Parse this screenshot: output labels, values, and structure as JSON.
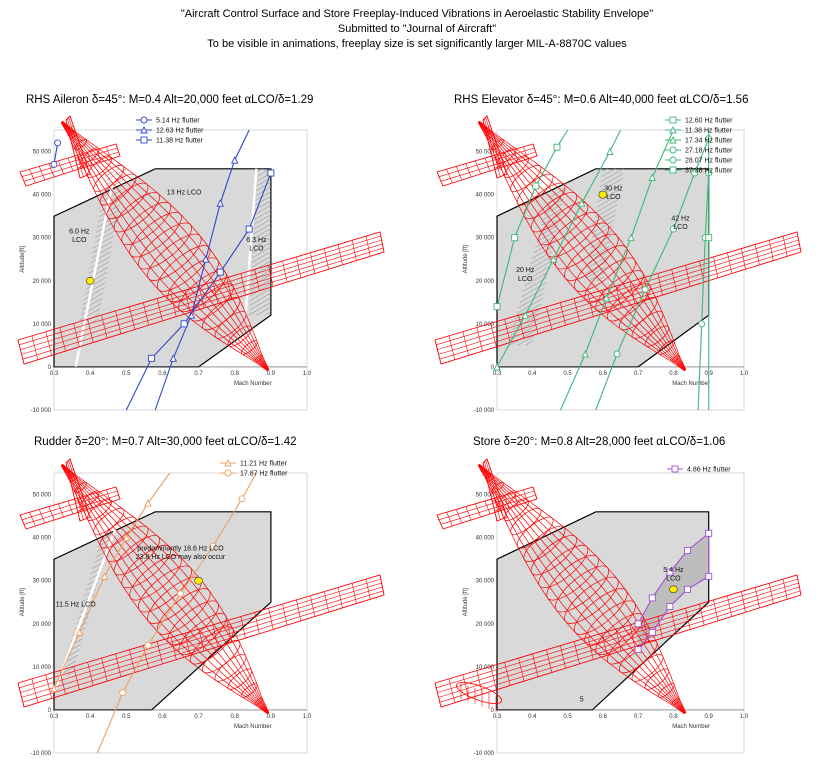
{
  "header": {
    "line1": "\"Aircraft Control Surface and Store Freeplay-Induced Vibrations in Aeroelastic Stability Envelope\"",
    "line2": "Submitted to \"Journal of Aircraft\"",
    "line3": "To be visible in animations, freeplay size is set significantly larger MIL-A-8870C values"
  },
  "colors": {
    "envelope_fill": "#d9d9d9",
    "envelope_edge": "#000000",
    "aircraft": "#ff0000",
    "flight_point": "#ffee00",
    "hatch": "#9a9a9a"
  },
  "chart_data": [
    {
      "type": "line",
      "title": "RHS Aileron δ=45°: M=0.4 Alt=20,000 feet  αLCO/δ=1.29",
      "xlabel": "Mach Number",
      "ylabel": "Altitude[ft]",
      "xlim": [
        0.3,
        1.0
      ],
      "ylim": [
        -10000,
        55000
      ],
      "xticks": [
        "0.3",
        "0.4",
        "0.5",
        "0.6",
        "0.7",
        "0.8",
        "0.9",
        "1.0"
      ],
      "yticks": [
        "-10 000",
        "",
        "10 000",
        "20 000",
        "30 000",
        "40 000",
        "50 000"
      ],
      "flight_point": {
        "mach": 0.4,
        "alt": 20000
      },
      "envelope": [
        [
          0.3,
          0
        ],
        [
          0.3,
          35000
        ],
        [
          0.58,
          46000
        ],
        [
          0.9,
          46000
        ],
        [
          0.9,
          12000
        ],
        [
          0.7,
          0
        ]
      ],
      "annotations": [
        {
          "text": "13 Hz LCO",
          "x": 0.66,
          "y": 40000
        },
        {
          "text": "6.0 Hz",
          "x": 0.37,
          "y": 31000
        },
        {
          "text": "LCO",
          "x": 0.37,
          "y": 29000
        },
        {
          "text": "6.3 Hz",
          "x": 0.86,
          "y": 29000
        },
        {
          "text": "LCO",
          "x": 0.86,
          "y": 27000
        }
      ],
      "series": [
        {
          "name": "5.14 Hz flutter",
          "color": "#2f48c8",
          "marker": "circle",
          "points": [
            [
              0.3,
              47000
            ],
            [
              0.31,
              52000
            ]
          ]
        },
        {
          "name": "12.63 Hz flutter",
          "color": "#2f48c8",
          "marker": "triangle",
          "points": [
            [
              0.58,
              -10000
            ],
            [
              0.63,
              2000
            ],
            [
              0.68,
              12000
            ],
            [
              0.72,
              25000
            ],
            [
              0.76,
              38000
            ],
            [
              0.8,
              48000
            ],
            [
              0.84,
              55000
            ]
          ]
        },
        {
          "name": "11.38 Hz flutter",
          "color": "#2f48c8",
          "marker": "square",
          "points": [
            [
              0.5,
              -10000
            ],
            [
              0.57,
              2000
            ],
            [
              0.66,
              10000
            ],
            [
              0.76,
              22000
            ],
            [
              0.84,
              32000
            ],
            [
              0.9,
              45000
            ]
          ]
        }
      ]
    },
    {
      "type": "line",
      "title": "RHS Elevator δ=45°: M=0.6 Alt=40,000 feet  αLCO/δ=1.56",
      "xlabel": "Mach Number",
      "ylabel": "Altitude [ft]",
      "xlim": [
        0.3,
        1.0
      ],
      "ylim": [
        -10000,
        55000
      ],
      "xticks": [
        "0.3",
        "0.4",
        "0.5",
        "0.6",
        "0.7",
        "0.8",
        "0.9",
        "1.0"
      ],
      "yticks": [
        "-10 000",
        "",
        "10 000",
        "20 000",
        "30 000",
        "40 000",
        "50 000"
      ],
      "flight_point": {
        "mach": 0.6,
        "alt": 40000
      },
      "envelope": [
        [
          0.3,
          0
        ],
        [
          0.3,
          35000
        ],
        [
          0.58,
          46000
        ],
        [
          0.9,
          46000
        ],
        [
          0.9,
          12000
        ],
        [
          0.7,
          0
        ]
      ],
      "annotations": [
        {
          "text": "30 Hz",
          "x": 0.63,
          "y": 41000
        },
        {
          "text": "LCO",
          "x": 0.63,
          "y": 39000
        },
        {
          "text": "42 Hz",
          "x": 0.82,
          "y": 34000
        },
        {
          "text": "LCO",
          "x": 0.82,
          "y": 32000
        },
        {
          "text": "20 Hz",
          "x": 0.38,
          "y": 22000
        },
        {
          "text": "LCO",
          "x": 0.38,
          "y": 20000
        }
      ],
      "series": [
        {
          "name": "12.60 Hz flutter",
          "color": "#3fb77a",
          "marker": "square",
          "points": [
            [
              0.3,
              14000
            ],
            [
              0.35,
              30000
            ],
            [
              0.41,
              42000
            ],
            [
              0.47,
              51000
            ],
            [
              0.5,
              55000
            ]
          ]
        },
        {
          "name": "11.38 Hz flutter",
          "color": "#3fb77a",
          "marker": "triangle",
          "points": [
            [
              0.3,
              0
            ],
            [
              0.38,
              12000
            ],
            [
              0.46,
              25000
            ],
            [
              0.54,
              38000
            ],
            [
              0.62,
              50000
            ],
            [
              0.65,
              55000
            ]
          ]
        },
        {
          "name": "17.34 Hz flutter",
          "color": "#3fb77a",
          "marker": "triangle",
          "points": [
            [
              0.48,
              -10000
            ],
            [
              0.55,
              3000
            ],
            [
              0.61,
              16000
            ],
            [
              0.68,
              30000
            ],
            [
              0.74,
              44000
            ],
            [
              0.8,
              55000
            ]
          ]
        },
        {
          "name": "27.18 Hz flutter",
          "color": "#3fb77a",
          "marker": "circle",
          "points": [
            [
              0.58,
              -10000
            ],
            [
              0.64,
              3000
            ],
            [
              0.72,
              18000
            ],
            [
              0.8,
              32000
            ],
            [
              0.86,
              45000
            ],
            [
              0.9,
              53000
            ]
          ]
        },
        {
          "name": "28.07 Hz flutter",
          "color": "#3fb77a",
          "marker": "circle",
          "points": [
            [
              0.87,
              -10000
            ],
            [
              0.88,
              10000
            ],
            [
              0.89,
              30000
            ],
            [
              0.9,
              45000
            ]
          ]
        },
        {
          "name": "37.38 Hz flutter",
          "color": "#3fb77a",
          "marker": "square",
          "points": [
            [
              0.9,
              -10000
            ],
            [
              0.9,
              30000
            ],
            [
              0.9,
              55000
            ]
          ]
        }
      ]
    },
    {
      "type": "line",
      "title": "Rudder δ=20°: M=0.7 Alt=30,000 feet  αLCO/δ=1.42",
      "xlabel": "Mach Number",
      "ylabel": "Altitude [ft]",
      "xlim": [
        0.3,
        1.0
      ],
      "ylim": [
        -10000,
        55000
      ],
      "xticks": [
        "0.3",
        "0.4",
        "0.5",
        "0.6",
        "0.7",
        "0.8",
        "0.9",
        "1.0"
      ],
      "yticks": [
        "-10 000",
        "",
        "10 000",
        "20 000",
        "30 000",
        "40 000",
        "50 000"
      ],
      "flight_point": {
        "mach": 0.7,
        "alt": 30000
      },
      "envelope": [
        [
          0.3,
          0
        ],
        [
          0.3,
          35000
        ],
        [
          0.58,
          46000
        ],
        [
          0.9,
          46000
        ],
        [
          0.9,
          25000
        ],
        [
          0.57,
          0
        ]
      ],
      "annotations": [
        {
          "text": "predominantly 18.6 Hz LCO",
          "x": 0.65,
          "y": 37000
        },
        {
          "text": "23.8 Hz LCO may also occur",
          "x": 0.65,
          "y": 35000
        },
        {
          "text": "11.5 Hz LCO",
          "x": 0.36,
          "y": 24000
        }
      ],
      "series": [
        {
          "name": "11.21 Hz flutter",
          "color": "#f0a060",
          "marker": "triangle",
          "points": [
            [
              0.3,
              5000
            ],
            [
              0.37,
              18000
            ],
            [
              0.44,
              31000
            ],
            [
              0.5,
              40000
            ],
            [
              0.56,
              48000
            ],
            [
              0.62,
              55000
            ]
          ]
        },
        {
          "name": "17.87 Hz flutter",
          "color": "#f0a060",
          "marker": "circle",
          "points": [
            [
              0.42,
              -10000
            ],
            [
              0.49,
              4000
            ],
            [
              0.56,
              15000
            ],
            [
              0.65,
              27000
            ],
            [
              0.74,
              38000
            ],
            [
              0.82,
              49000
            ],
            [
              0.86,
              55000
            ]
          ]
        }
      ]
    },
    {
      "type": "line",
      "title": "Store δ=20°: M=0.8 Alt=28,000 feet  αLCO/δ=1.06",
      "xlabel": "Mach Number",
      "ylabel": "Altitude [ft]",
      "xlim": [
        0.3,
        1.0
      ],
      "ylim": [
        -10000,
        55000
      ],
      "xticks": [
        "0.3",
        "0.4",
        "0.5",
        "0.6",
        "0.7",
        "0.8",
        "0.9",
        "1.0"
      ],
      "yticks": [
        "-10 000",
        "",
        "10 000",
        "20 000",
        "30 000",
        "40 000",
        "50 000"
      ],
      "flight_point": {
        "mach": 0.8,
        "alt": 28000
      },
      "envelope": [
        [
          0.3,
          0
        ],
        [
          0.3,
          35000
        ],
        [
          0.58,
          46000
        ],
        [
          0.9,
          46000
        ],
        [
          0.9,
          25000
        ],
        [
          0.57,
          0
        ]
      ],
      "annotations": [
        {
          "text": "5.4 Hz",
          "x": 0.8,
          "y": 32000
        },
        {
          "text": "LCO",
          "x": 0.8,
          "y": 30000
        },
        {
          "text": "5",
          "x": 0.54,
          "y": 2000
        }
      ],
      "series": [
        {
          "name": "4.86 Hz flutter",
          "color": "#a050d8",
          "marker": "square",
          "points": [
            [
              0.7,
              20000
            ],
            [
              0.74,
              26000
            ],
            [
              0.79,
              32000
            ],
            [
              0.84,
              37000
            ],
            [
              0.9,
              41000
            ],
            [
              0.9,
              31000
            ],
            [
              0.84,
              28000
            ],
            [
              0.79,
              24000
            ],
            [
              0.74,
              18000
            ],
            [
              0.7,
              14000
            ]
          ]
        }
      ]
    }
  ]
}
